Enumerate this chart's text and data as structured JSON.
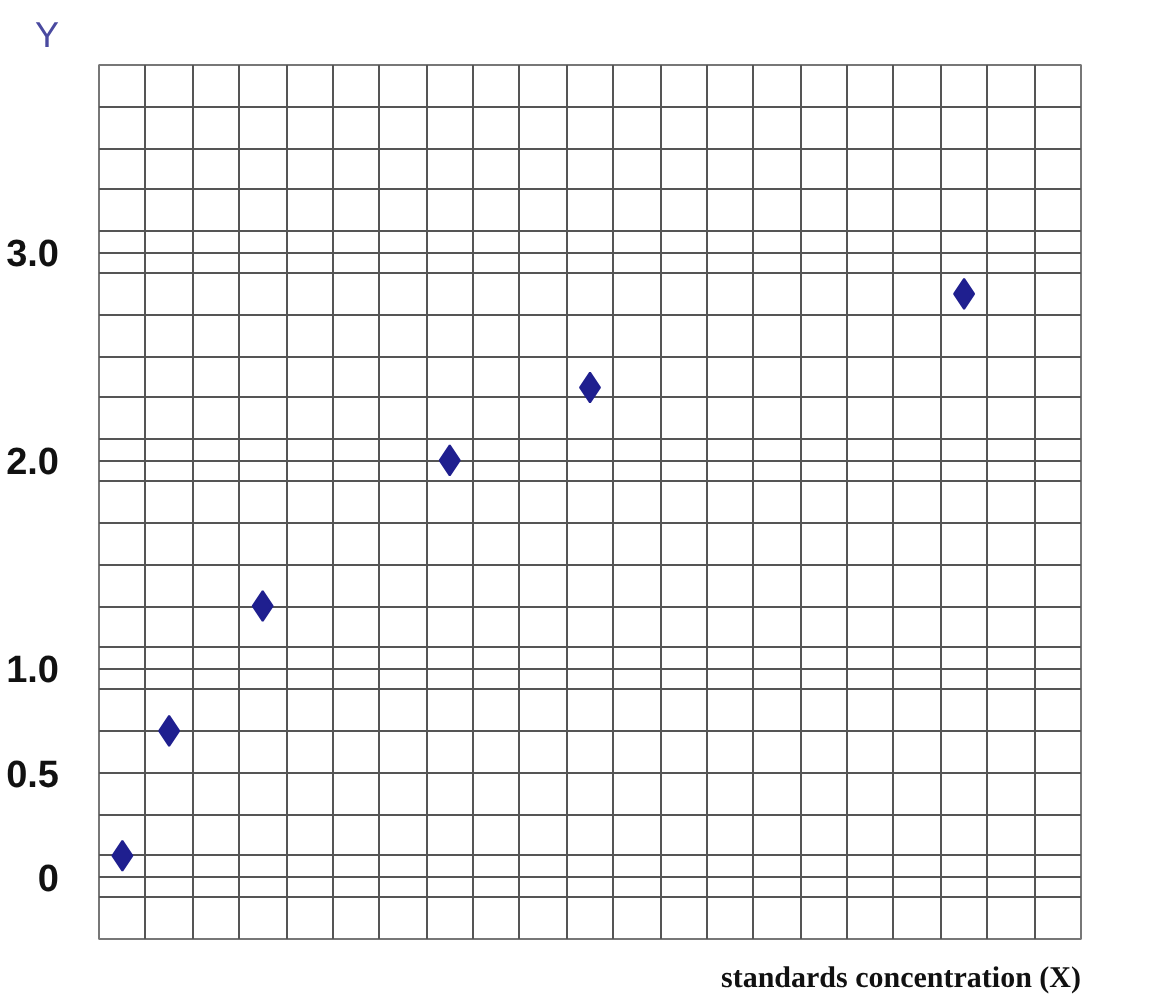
{
  "chart_data": {
    "type": "scatter",
    "xlabel": "standards concentration (X)",
    "ylabel": "Y",
    "categories": [
      null,
      null,
      null,
      null,
      null,
      null,
      null,
      null,
      null,
      null,
      null,
      null,
      null,
      null,
      null,
      null,
      null,
      null,
      null,
      null,
      null
    ],
    "series": [
      {
        "color": "#1f1f8f",
        "values": [
          0.1,
          0.7,
          null,
          1.3,
          null,
          null,
          null,
          2.0,
          null,
          null,
          2.35,
          null,
          null,
          null,
          null,
          null,
          null,
          null,
          2.8,
          null,
          null
        ]
      }
    ],
    "marker": "diamond",
    "ylim": [
      -0.3,
      3.9
    ],
    "yticks": [
      {
        "value": -0.3,
        "label": null
      },
      {
        "value": -0.1,
        "label": null
      },
      {
        "value": 0,
        "label": "0"
      },
      {
        "value": 0.1,
        "label": null
      },
      {
        "value": 0.3,
        "label": null
      },
      {
        "value": 0.5,
        "label": "0.5"
      },
      {
        "value": 0.7,
        "label": null
      },
      {
        "value": 0.9,
        "label": null
      },
      {
        "value": 1.0,
        "label": "1.0"
      },
      {
        "value": 1.1,
        "label": null
      },
      {
        "value": 1.3,
        "label": null
      },
      {
        "value": 1.5,
        "label": null
      },
      {
        "value": 1.7,
        "label": null
      },
      {
        "value": 1.9,
        "label": null
      },
      {
        "value": 2.0,
        "label": "2.0"
      },
      {
        "value": 2.1,
        "label": null
      },
      {
        "value": 2.3,
        "label": null
      },
      {
        "value": 2.5,
        "label": null
      },
      {
        "value": 2.7,
        "label": null
      },
      {
        "value": 2.9,
        "label": null
      },
      {
        "value": 3.0,
        "label": "3.0"
      },
      {
        "value": 3.1,
        "label": null
      },
      {
        "value": 3.3,
        "label": null
      },
      {
        "value": 3.5,
        "label": null
      },
      {
        "value": 3.7,
        "label": null
      },
      {
        "value": 3.9,
        "label": null
      }
    ],
    "grid": true
  }
}
